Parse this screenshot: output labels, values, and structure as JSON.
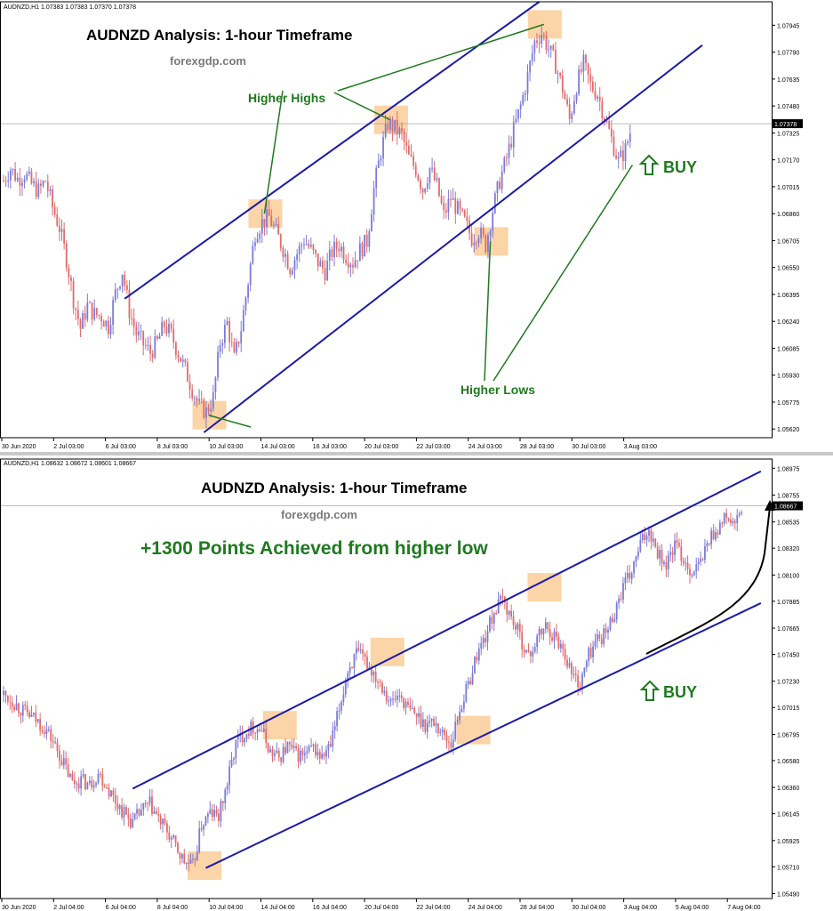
{
  "colors": {
    "up_candle": "#7b7bd8",
    "down_candle": "#e06b6b",
    "channel_line": "#1a1aa8",
    "annotation_green": "#1f7a1f",
    "highlight_box": "#f9c58a",
    "axis_text": "#000000",
    "arrow_black": "#000000"
  },
  "panels": [
    {
      "header": "AUDNZD,H1  1.07383 1.07383 1.07370 1.07378",
      "title": "AUDNZD Analysis: 1-hour Timeframe",
      "watermark": "forexgdp.com",
      "current_price_label": "1.07378",
      "labels": {
        "higher_highs": "Higher Highs",
        "higher_lows": "Higher Lows",
        "buy": "BUY"
      }
    },
    {
      "header": "AUDNZD,H1  1.08632 1.08672 1.08601 1.08667",
      "title": "AUDNZD Analysis: 1-hour Timeframe",
      "watermark": "forexgdp.com",
      "current_price_label": "1.08667",
      "labels": {
        "points": "+1300 Points Achieved from higher low",
        "buy": "BUY"
      }
    }
  ],
  "chart_data": [
    {
      "type": "candlestick",
      "title": "AUDNZD Analysis: 1-hour Timeframe",
      "symbol": "AUDNZD",
      "timeframe": "H1",
      "x_ticks": [
        "30 Jun 2020",
        "2 Jul 03:00",
        "6 Jul 03:00",
        "8 Jul 03:00",
        "10 Jul 03:00",
        "14 Jul 03:00",
        "16 Jul 03:00",
        "20 Jul 03:00",
        "22 Jul 03:00",
        "24 Jul 03:00",
        "28 Jul 03:00",
        "30 Jul 03:00",
        "3 Aug 03:00"
      ],
      "y_ticks": [
        "1.07945",
        "1.07790",
        "1.07635",
        "1.07480",
        "1.07325",
        "1.07170",
        "1.07015",
        "1.06860",
        "1.06705",
        "1.06550",
        "1.06395",
        "1.06240",
        "1.06085",
        "1.05930",
        "1.05775",
        "1.05620"
      ],
      "ylim": [
        1.0557,
        1.0808
      ],
      "current_price": 1.07378,
      "close_path": [
        [
          0,
          1.0705
        ],
        [
          3,
          1.0712
        ],
        [
          6,
          1.0706
        ],
        [
          9,
          1.0709
        ],
        [
          12,
          1.0703
        ],
        [
          15,
          1.0699
        ],
        [
          18,
          1.0705
        ],
        [
          21,
          1.069
        ],
        [
          24,
          1.0678
        ],
        [
          27,
          1.066
        ],
        [
          30,
          1.0637
        ],
        [
          33,
          1.062
        ],
        [
          36,
          1.0633
        ],
        [
          39,
          1.0628
        ],
        [
          42,
          1.0627
        ],
        [
          45,
          1.0621
        ],
        [
          48,
          1.064
        ],
        [
          51,
          1.0653
        ],
        [
          54,
          1.063
        ],
        [
          57,
          1.0617
        ],
        [
          60,
          1.0611
        ],
        [
          63,
          1.0606
        ],
        [
          66,
          1.0612
        ],
        [
          69,
          1.0622
        ],
        [
          72,
          1.0616
        ],
        [
          75,
          1.0606
        ],
        [
          78,
          1.0596
        ],
        [
          81,
          1.0585
        ],
        [
          84,
          1.0575
        ],
        [
          87,
          1.0572
        ],
        [
          90,
          1.058
        ],
        [
          93,
          1.0612
        ],
        [
          96,
          1.0623
        ],
        [
          99,
          1.0602
        ],
        [
          102,
          1.062
        ],
        [
          105,
          1.0647
        ],
        [
          108,
          1.0675
        ],
        [
          111,
          1.0681
        ],
        [
          114,
          1.0684
        ],
        [
          117,
          1.0675
        ],
        [
          120,
          1.0666
        ],
        [
          123,
          1.0655
        ],
        [
          126,
          1.0663
        ],
        [
          129,
          1.0671
        ],
        [
          132,
          1.0665
        ],
        [
          135,
          1.0658
        ],
        [
          138,
          1.0653
        ],
        [
          141,
          1.0664
        ],
        [
          144,
          1.0668
        ],
        [
          147,
          1.0662
        ],
        [
          150,
          1.0658
        ],
        [
          153,
          1.0665
        ],
        [
          156,
          1.067
        ],
        [
          159,
          1.07
        ],
        [
          162,
          1.0722
        ],
        [
          165,
          1.0738
        ],
        [
          168,
          1.0735
        ],
        [
          171,
          1.0731
        ],
        [
          174,
          1.0718
        ],
        [
          177,
          1.0712
        ],
        [
          180,
          1.07
        ],
        [
          183,
          1.0712
        ],
        [
          186,
          1.0702
        ],
        [
          189,
          1.0685
        ],
        [
          192,
          1.0695
        ],
        [
          195,
          1.0688
        ],
        [
          198,
          1.0681
        ],
        [
          201,
          1.0672
        ],
        [
          204,
          1.0676
        ],
        [
          207,
          1.0668
        ],
        [
          210,
          1.0688
        ],
        [
          213,
          1.0705
        ],
        [
          216,
          1.0718
        ],
        [
          219,
          1.0734
        ],
        [
          222,
          1.0748
        ],
        [
          225,
          1.0765
        ],
        [
          228,
          1.0785
        ],
        [
          231,
          1.079
        ],
        [
          234,
          1.0781
        ],
        [
          237,
          1.0772
        ],
        [
          240,
          1.0758
        ],
        [
          243,
          1.074
        ],
        [
          246,
          1.076
        ],
        [
          249,
          1.0772
        ],
        [
          252,
          1.076
        ],
        [
          255,
          1.0755
        ],
        [
          258,
          1.0742
        ],
        [
          261,
          1.0729
        ],
        [
          264,
          1.0716
        ],
        [
          267,
          1.0723
        ],
        [
          270,
          1.07378
        ]
      ],
      "channel": {
        "upper": [
          [
            52,
            1.0637
          ],
          [
            230,
            1.0808
          ]
        ],
        "lower": [
          [
            86,
            1.056
          ],
          [
            300,
            1.0783
          ]
        ]
      },
      "highlights": {
        "higher_highs": [
          [
            112,
            1.0686
          ],
          [
            166,
            1.074
          ],
          [
            232,
            1.0795
          ]
        ],
        "higher_lows": [
          [
            88,
            1.057
          ],
          [
            209,
            1.067
          ]
        ]
      },
      "buy_point": [
        270,
        1.0714
      ]
    },
    {
      "type": "candlestick",
      "title": "AUDNZD Analysis: 1-hour Timeframe",
      "symbol": "AUDNZD",
      "timeframe": "H1",
      "x_ticks": [
        "30 Jun 2020",
        "2 Jul 04:00",
        "6 Jul 04:00",
        "8 Jul 04:00",
        "10 Jul 04:00",
        "14 Jul 04:00",
        "16 Jul 04:00",
        "20 Jul 04:00",
        "22 Jul 04:00",
        "24 Jul 04:00",
        "28 Jul 04:00",
        "30 Jul 04:00",
        "3 Aug 04:00",
        "5 Aug 04:00",
        "7 Aug 04:00"
      ],
      "y_ticks": [
        "1.08975",
        "1.08755",
        "1.08535",
        "1.08320",
        "1.08100",
        "1.07885",
        "1.07665",
        "1.07450",
        "1.07230",
        "1.07015",
        "1.06795",
        "1.06580",
        "1.06360",
        "1.06145",
        "1.05925",
        "1.05710",
        "1.05490"
      ],
      "ylim": [
        1.0545,
        1.0905
      ],
      "current_price": 1.08667,
      "close_path": [
        [
          0,
          1.0712
        ],
        [
          4,
          1.0707
        ],
        [
          8,
          1.07
        ],
        [
          12,
          1.0695
        ],
        [
          16,
          1.069
        ],
        [
          20,
          1.0683
        ],
        [
          24,
          1.067
        ],
        [
          28,
          1.0655
        ],
        [
          32,
          1.064
        ],
        [
          36,
          1.0642
        ],
        [
          40,
          1.0638
        ],
        [
          44,
          1.0648
        ],
        [
          48,
          1.0637
        ],
        [
          52,
          1.0625
        ],
        [
          56,
          1.0615
        ],
        [
          60,
          1.0607
        ],
        [
          64,
          1.0617
        ],
        [
          68,
          1.0622
        ],
        [
          72,
          1.061
        ],
        [
          76,
          1.06
        ],
        [
          80,
          1.0587
        ],
        [
          84,
          1.0575
        ],
        [
          88,
          1.0571
        ],
        [
          92,
          1.0605
        ],
        [
          96,
          1.0615
        ],
        [
          100,
          1.0612
        ],
        [
          104,
          1.064
        ],
        [
          108,
          1.0672
        ],
        [
          112,
          1.0681
        ],
        [
          116,
          1.0686
        ],
        [
          120,
          1.0683
        ],
        [
          124,
          1.0665
        ],
        [
          128,
          1.066
        ],
        [
          132,
          1.067
        ],
        [
          136,
          1.0663
        ],
        [
          140,
          1.0662
        ],
        [
          144,
          1.0668
        ],
        [
          148,
          1.066
        ],
        [
          152,
          1.067
        ],
        [
          156,
          1.07
        ],
        [
          160,
          1.0732
        ],
        [
          164,
          1.0745
        ],
        [
          168,
          1.074
        ],
        [
          172,
          1.073
        ],
        [
          176,
          1.072
        ],
        [
          180,
          1.0705
        ],
        [
          184,
          1.0712
        ],
        [
          188,
          1.07
        ],
        [
          192,
          1.0695
        ],
        [
          196,
          1.0688
        ],
        [
          200,
          1.069
        ],
        [
          204,
          1.068
        ],
        [
          208,
          1.0672
        ],
        [
          212,
          1.07
        ],
        [
          216,
          1.072
        ],
        [
          220,
          1.0745
        ],
        [
          224,
          1.076
        ],
        [
          228,
          1.078
        ],
        [
          232,
          1.079
        ],
        [
          236,
          1.0775
        ],
        [
          240,
          1.076
        ],
        [
          244,
          1.0742
        ],
        [
          248,
          1.0758
        ],
        [
          252,
          1.0768
        ],
        [
          256,
          1.076
        ],
        [
          260,
          1.075
        ],
        [
          264,
          1.073
        ],
        [
          268,
          1.072
        ],
        [
          272,
          1.0745
        ],
        [
          276,
          1.0758
        ],
        [
          280,
          1.0762
        ],
        [
          284,
          1.078
        ],
        [
          288,
          1.08
        ],
        [
          292,
          1.0812
        ],
        [
          296,
          1.0835
        ],
        [
          300,
          1.0848
        ],
        [
          304,
          1.083
        ],
        [
          308,
          1.0818
        ],
        [
          312,
          1.0835
        ],
        [
          316,
          1.0823
        ],
        [
          320,
          1.0812
        ],
        [
          324,
          1.082
        ],
        [
          328,
          1.084
        ],
        [
          332,
          1.0848
        ],
        [
          336,
          1.0858
        ],
        [
          340,
          1.085
        ],
        [
          344,
          1.08667
        ]
      ],
      "channel": {
        "upper": [
          [
            60,
            1.0635
          ],
          [
            352,
            1.0895
          ]
        ],
        "lower": [
          [
            94,
            1.057
          ],
          [
            352,
            1.0787
          ]
        ]
      },
      "highlights": {
        "touches": [
          [
            93,
            1.0572
          ],
          [
            128,
            1.0687
          ],
          [
            178,
            1.0747
          ],
          [
            218,
            1.0683
          ],
          [
            251,
            1.08
          ]
        ]
      },
      "buy_point": [
        274,
        1.0723
      ]
    }
  ]
}
